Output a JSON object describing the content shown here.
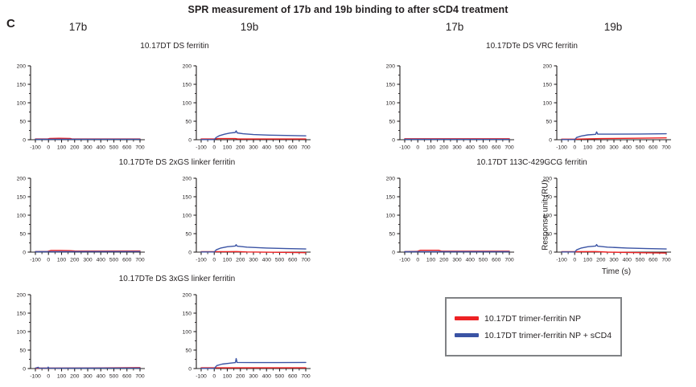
{
  "panel_label": "C",
  "title": "SPR measurement of 17b and 19b binding to after sCD4 treatment",
  "column_headers": [
    "17b",
    "19b",
    "17b",
    "19b"
  ],
  "colors": {
    "red_series": "#ed2224",
    "blue_series": "#3a53a4",
    "axis": "#231f20",
    "legend_border": "#808285"
  },
  "legend": {
    "items": [
      {
        "label": "10.17DT trimer-ferritin NP",
        "color": "#ed2224"
      },
      {
        "label": "10.17DT trimer-ferritin NP + sCD4",
        "color": "#3a53a4"
      }
    ]
  },
  "chart_data": [
    {
      "type": "line",
      "group_title": "10.17DT DS ferritin",
      "column": "17b",
      "xlabel": "",
      "ylabel": "",
      "xlim": [
        -100,
        700
      ],
      "ylim": [
        0,
        200
      ],
      "xticks": [
        -100,
        0,
        100,
        200,
        300,
        400,
        500,
        600,
        700
      ],
      "yticks": [
        0,
        50,
        100,
        150,
        200
      ],
      "series": [
        {
          "name": "10.17DT trimer-ferritin NP",
          "color": "#ed2224",
          "points": [
            [
              -100,
              2
            ],
            [
              -5,
              2
            ],
            [
              10,
              3.5
            ],
            [
              80,
              4
            ],
            [
              165,
              3.5
            ],
            [
              180,
              2
            ],
            [
              700,
              2
            ]
          ]
        },
        {
          "name": "10.17DT trimer-ferritin NP + sCD4",
          "color": "#3a53a4",
          "points": [
            [
              -100,
              1
            ],
            [
              700,
              1.2
            ]
          ]
        }
      ]
    },
    {
      "type": "line",
      "group_title": "10.17DT DS ferritin",
      "column": "19b",
      "xlabel": "",
      "ylabel": "",
      "xlim": [
        -100,
        700
      ],
      "ylim": [
        0,
        200
      ],
      "xticks": [
        -100,
        0,
        100,
        200,
        300,
        400,
        500,
        600,
        700
      ],
      "yticks": [
        0,
        50,
        100,
        150,
        200
      ],
      "series": [
        {
          "name": "10.17DT trimer-ferritin NP",
          "color": "#ed2224",
          "points": [
            [
              -100,
              2
            ],
            [
              0,
              2
            ],
            [
              30,
              3
            ],
            [
              160,
              3
            ],
            [
              180,
              2
            ],
            [
              700,
              2
            ]
          ]
        },
        {
          "name": "10.17DT trimer-ferritin NP + sCD4",
          "color": "#3a53a4",
          "points": [
            [
              -100,
              0.5
            ],
            [
              0,
              0.5
            ],
            [
              15,
              6
            ],
            [
              40,
              11
            ],
            [
              80,
              15
            ],
            [
              120,
              18
            ],
            [
              160,
              19.5
            ],
            [
              168,
              24
            ],
            [
              176,
              18.5
            ],
            [
              220,
              16
            ],
            [
              300,
              14
            ],
            [
              420,
              12.5
            ],
            [
              550,
              11.5
            ],
            [
              700,
              10.5
            ]
          ]
        }
      ]
    },
    {
      "type": "line",
      "group_title": "10.17DTe DS VRC ferritin",
      "column": "17b",
      "xlabel": "",
      "ylabel": "",
      "xlim": [
        -100,
        700
      ],
      "ylim": [
        0,
        200
      ],
      "xticks": [
        -100,
        0,
        100,
        200,
        300,
        400,
        500,
        600,
        700
      ],
      "yticks": [
        0,
        50,
        100,
        150,
        200
      ],
      "series": [
        {
          "name": "10.17DT trimer-ferritin NP",
          "color": "#ed2224",
          "points": [
            [
              -100,
              2.5
            ],
            [
              700,
              2.5
            ]
          ]
        },
        {
          "name": "10.17DT trimer-ferritin NP + sCD4",
          "color": "#3a53a4",
          "points": [
            [
              -100,
              1
            ],
            [
              700,
              0.8
            ]
          ]
        }
      ]
    },
    {
      "type": "line",
      "group_title": "10.17DTe DS VRC ferritin",
      "column": "19b",
      "xlabel": "",
      "ylabel": "",
      "xlim": [
        -100,
        700
      ],
      "ylim": [
        0,
        200
      ],
      "xticks": [
        -100,
        0,
        100,
        200,
        300,
        400,
        500,
        600,
        700
      ],
      "yticks": [
        0,
        50,
        100,
        150,
        200
      ],
      "series": [
        {
          "name": "10.17DT trimer-ferritin NP",
          "color": "#ed2224",
          "points": [
            [
              -100,
              1.5
            ],
            [
              0,
              1.5
            ],
            [
              200,
              3
            ],
            [
              450,
              4
            ],
            [
              700,
              5
            ]
          ]
        },
        {
          "name": "10.17DT trimer-ferritin NP + sCD4",
          "color": "#3a53a4",
          "points": [
            [
              -100,
              0.5
            ],
            [
              0,
              0.5
            ],
            [
              15,
              6
            ],
            [
              50,
              10
            ],
            [
              100,
              13
            ],
            [
              160,
              14.5
            ],
            [
              168,
              21
            ],
            [
              176,
              15
            ],
            [
              300,
              15
            ],
            [
              500,
              15.5
            ],
            [
              700,
              16
            ]
          ]
        }
      ]
    },
    {
      "type": "line",
      "group_title": "10.17DTe DS 2xGS linker ferritin",
      "column": "17b",
      "xlabel": "",
      "ylabel": "",
      "xlim": [
        -100,
        700
      ],
      "ylim": [
        0,
        200
      ],
      "xticks": [
        -100,
        0,
        100,
        200,
        300,
        400,
        500,
        600,
        700
      ],
      "yticks": [
        0,
        50,
        100,
        150,
        200
      ],
      "series": [
        {
          "name": "10.17DT trimer-ferritin NP",
          "color": "#ed2224",
          "points": [
            [
              -100,
              1.5
            ],
            [
              -5,
              2
            ],
            [
              20,
              4.5
            ],
            [
              90,
              4.5
            ],
            [
              165,
              4
            ],
            [
              200,
              3
            ],
            [
              400,
              2.8
            ],
            [
              700,
              3
            ]
          ]
        },
        {
          "name": "10.17DT trimer-ferritin NP + sCD4",
          "color": "#3a53a4",
          "points": [
            [
              -100,
              1
            ],
            [
              700,
              1.5
            ]
          ]
        }
      ]
    },
    {
      "type": "line",
      "group_title": "10.17DTe DS 2xGS linker ferritin",
      "column": "19b",
      "xlabel": "",
      "ylabel": "",
      "xlim": [
        -100,
        700
      ],
      "ylim": [
        0,
        200
      ],
      "xticks": [
        -100,
        0,
        100,
        200,
        300,
        400,
        500,
        600,
        700
      ],
      "yticks": [
        0,
        50,
        100,
        150,
        200
      ],
      "series": [
        {
          "name": "10.17DT trimer-ferritin NP",
          "color": "#ed2224",
          "points": [
            [
              -100,
              1
            ],
            [
              0,
              1.2
            ],
            [
              100,
              1.2
            ],
            [
              170,
              1.5
            ],
            [
              250,
              0.5
            ],
            [
              450,
              -0.5
            ],
            [
              700,
              -1.5
            ]
          ]
        },
        {
          "name": "10.17DT trimer-ferritin NP + sCD4",
          "color": "#3a53a4",
          "points": [
            [
              -100,
              0.5
            ],
            [
              0,
              0.5
            ],
            [
              15,
              6
            ],
            [
              50,
              11
            ],
            [
              100,
              14.5
            ],
            [
              160,
              16.5
            ],
            [
              168,
              20
            ],
            [
              176,
              16
            ],
            [
              250,
              13.5
            ],
            [
              400,
              11
            ],
            [
              550,
              9.5
            ],
            [
              700,
              8.5
            ]
          ]
        }
      ]
    },
    {
      "type": "line",
      "group_title": "10.17DT 113C-429GCG ferritin",
      "column": "17b",
      "xlabel": "",
      "ylabel": "",
      "xlim": [
        -100,
        700
      ],
      "ylim": [
        0,
        200
      ],
      "xticks": [
        -100,
        0,
        100,
        200,
        300,
        400,
        500,
        600,
        700
      ],
      "yticks": [
        0,
        50,
        100,
        150,
        200
      ],
      "series": [
        {
          "name": "10.17DT trimer-ferritin NP",
          "color": "#ed2224",
          "points": [
            [
              -100,
              1.5
            ],
            [
              -5,
              2
            ],
            [
              20,
              5
            ],
            [
              160,
              5
            ],
            [
              180,
              2.5
            ],
            [
              700,
              2.5
            ]
          ]
        },
        {
          "name": "10.17DT trimer-ferritin NP + sCD4",
          "color": "#3a53a4",
          "points": [
            [
              -100,
              1
            ],
            [
              700,
              1
            ]
          ]
        }
      ]
    },
    {
      "type": "line",
      "group_title": "10.17DT 113C-429GCG ferritin",
      "column": "19b",
      "xlabel": "Time (s)",
      "ylabel": "Response unit (RU)",
      "xlim": [
        -100,
        700
      ],
      "ylim": [
        0,
        200
      ],
      "xticks": [
        -100,
        0,
        100,
        200,
        300,
        400,
        500,
        600,
        700
      ],
      "yticks": [
        0,
        50,
        100,
        150,
        200
      ],
      "series": [
        {
          "name": "10.17DT trimer-ferritin NP",
          "color": "#ed2224",
          "points": [
            [
              -100,
              1
            ],
            [
              0,
              1
            ],
            [
              160,
              1.5
            ],
            [
              250,
              0
            ],
            [
              500,
              -1.5
            ],
            [
              700,
              -2.5
            ]
          ]
        },
        {
          "name": "10.17DT trimer-ferritin NP + sCD4",
          "color": "#3a53a4",
          "points": [
            [
              -100,
              0.5
            ],
            [
              0,
              0.5
            ],
            [
              15,
              6
            ],
            [
              50,
              11
            ],
            [
              100,
              14.5
            ],
            [
              160,
              16.5
            ],
            [
              168,
              20.5
            ],
            [
              176,
              16
            ],
            [
              250,
              13.5
            ],
            [
              400,
              11
            ],
            [
              550,
              9.5
            ],
            [
              700,
              8.5
            ]
          ]
        }
      ]
    },
    {
      "type": "line",
      "group_title": "10.17DTe DS 3xGS linker ferritin",
      "column": "17b",
      "xlabel": "",
      "ylabel": "",
      "xlim": [
        -100,
        700
      ],
      "ylim": [
        0,
        200
      ],
      "xticks": [
        -100,
        0,
        100,
        200,
        300,
        400,
        500,
        600,
        700
      ],
      "yticks": [
        0,
        50,
        100,
        150,
        200
      ],
      "series": [
        {
          "name": "10.17DT trimer-ferritin NP",
          "color": "#ed2224",
          "points": [
            [
              -100,
              1
            ],
            [
              300,
              1.5
            ],
            [
              700,
              2.5
            ]
          ]
        },
        {
          "name": "10.17DT trimer-ferritin NP + sCD4",
          "color": "#3a53a4",
          "points": [
            [
              -100,
              1
            ],
            [
              -78,
              3.5
            ],
            [
              -72,
              0.8
            ],
            [
              -8,
              0.8
            ],
            [
              -2,
              4
            ],
            [
              4,
              0.8
            ],
            [
              300,
              1
            ],
            [
              700,
              1.2
            ]
          ]
        }
      ]
    },
    {
      "type": "line",
      "group_title": "10.17DTe DS 3xGS linker ferritin",
      "column": "19b",
      "xlabel": "",
      "ylabel": "",
      "xlim": [
        -100,
        700
      ],
      "ylim": [
        0,
        200
      ],
      "xticks": [
        -100,
        0,
        100,
        200,
        300,
        400,
        500,
        600,
        700
      ],
      "yticks": [
        0,
        50,
        100,
        150,
        200
      ],
      "series": [
        {
          "name": "10.17DT trimer-ferritin NP",
          "color": "#ed2224",
          "points": [
            [
              -100,
              2
            ],
            [
              700,
              2
            ]
          ]
        },
        {
          "name": "10.17DT trimer-ferritin NP + sCD4",
          "color": "#3a53a4",
          "points": [
            [
              -100,
              0.5
            ],
            [
              0,
              0.5
            ],
            [
              20,
              8
            ],
            [
              60,
              12
            ],
            [
              120,
              14.5
            ],
            [
              162,
              16
            ],
            [
              168,
              27
            ],
            [
              175,
              16.5
            ],
            [
              300,
              16
            ],
            [
              500,
              16
            ],
            [
              700,
              16.5
            ]
          ]
        }
      ]
    }
  ]
}
